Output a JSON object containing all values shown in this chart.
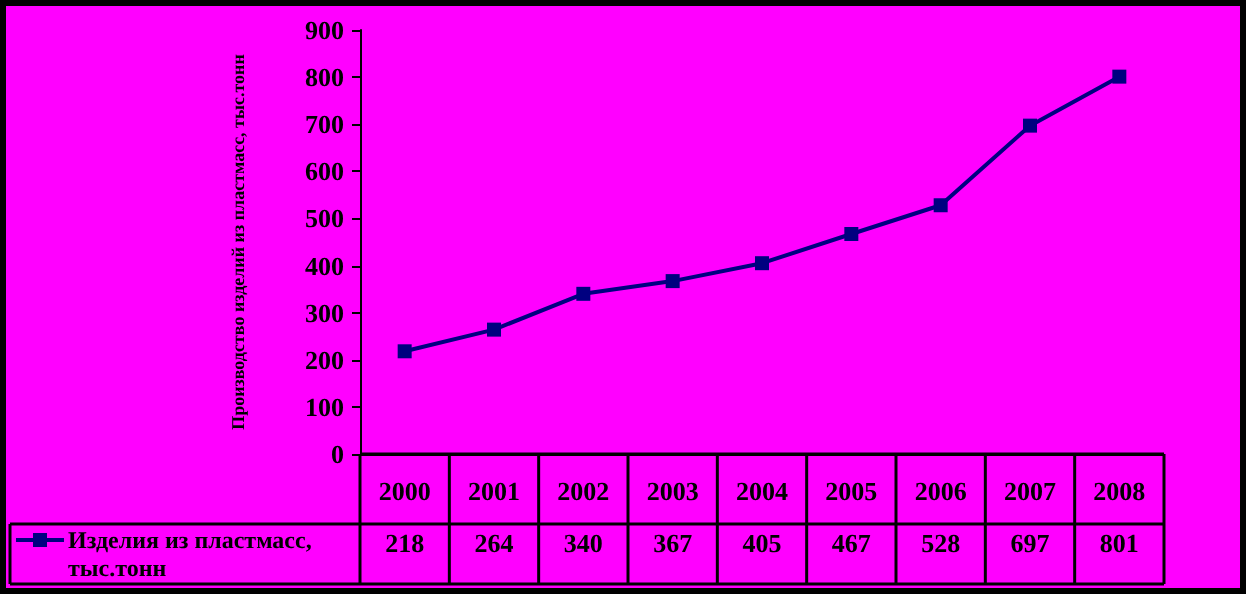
{
  "chart_data": {
    "type": "line",
    "ylabel": "Производство изделий из пластмасс, тыс.тонн",
    "categories": [
      "2000",
      "2001",
      "2002",
      "2003",
      "2004",
      "2005",
      "2006",
      "2007",
      "2008"
    ],
    "series": [
      {
        "name": "Изделия из пластмасс, тыс.тонн",
        "color": "#000080",
        "values": [
          218,
          264,
          340,
          367,
          405,
          467,
          528,
          697,
          801
        ]
      }
    ],
    "ylim": [
      0,
      900
    ],
    "yticks": [
      0,
      100,
      200,
      300,
      400,
      500,
      600,
      700,
      800,
      900
    ],
    "grid": false,
    "legend": "bottom left",
    "marker": "square",
    "line_style": "solid",
    "data_labels": true
  }
}
